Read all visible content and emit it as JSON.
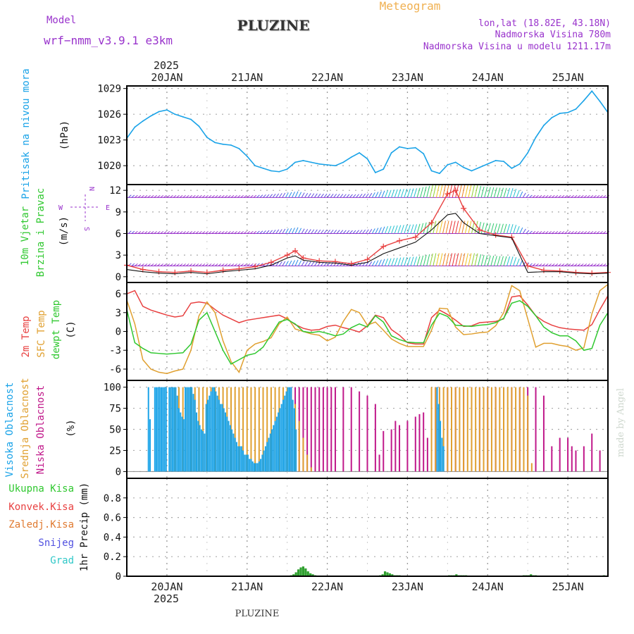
{
  "header": {
    "model_label": "Model",
    "model_name": "wrf−nmm_v3.9.1  e3km",
    "station": "PLUZINE",
    "product": "Meteogram",
    "lonlat": "lon,lat (18.82E, 43.18N)",
    "altitude": "Nadmorska Visina 780m",
    "model_altitude": "Nadmorska Visina u modelu 1211.17m",
    "footer_station": "PLUZINE",
    "watermark": "made by Angel"
  },
  "colors": {
    "pressure": "#1aa3e8",
    "temp2m": "#e84040",
    "sfc_temp": "#e0a030",
    "dewpt": "#30c830",
    "high_cloud": "#1aa3e8",
    "mid_cloud": "#e0a030",
    "low_cloud": "#c0188a",
    "precip_total": "#30a030",
    "purple": "#9933cc"
  },
  "chart_data": [
    {
      "id": "pressure",
      "type": "line",
      "title": "Pritisak na nivou mora",
      "ylabel": "(hPa)",
      "x_days": [
        "20JAN",
        "21JAN",
        "22JAN",
        "23JAN",
        "24JAN",
        "25JAN"
      ],
      "year": "2025",
      "xlim": [
        -0.5,
        5.5
      ],
      "ylim": [
        1017.8,
        1029.3
      ],
      "yticks": [
        "1029",
        "1026",
        "1023",
        "1020"
      ],
      "ytick_values": [
        1029,
        1026,
        1023,
        1020
      ],
      "x": [
        -0.5,
        -0.4,
        -0.3,
        -0.2,
        -0.1,
        0.0,
        0.1,
        0.2,
        0.3,
        0.4,
        0.5,
        0.6,
        0.7,
        0.8,
        0.9,
        1.0,
        1.1,
        1.2,
        1.3,
        1.4,
        1.5,
        1.6,
        1.7,
        1.8,
        1.9,
        2.0,
        2.1,
        2.2,
        2.3,
        2.4,
        2.5,
        2.6,
        2.7,
        2.8,
        2.9,
        3.0,
        3.1,
        3.2,
        3.3,
        3.4,
        3.5,
        3.6,
        3.7,
        3.8,
        3.9,
        4.0,
        4.1,
        4.2,
        4.3,
        4.4,
        4.5,
        4.6,
        4.7,
        4.8,
        4.9,
        5.0,
        5.1,
        5.2,
        5.3,
        5.4,
        5.5
      ],
      "y": [
        1023.2,
        1024.5,
        1025.2,
        1025.8,
        1026.3,
        1026.5,
        1026.0,
        1025.7,
        1025.4,
        1024.6,
        1023.3,
        1022.7,
        1022.5,
        1022.4,
        1022.0,
        1021.1,
        1020.0,
        1019.7,
        1019.4,
        1019.3,
        1019.6,
        1020.4,
        1020.6,
        1020.4,
        1020.2,
        1020.1,
        1020.0,
        1020.4,
        1021.0,
        1021.5,
        1020.8,
        1019.2,
        1019.6,
        1021.5,
        1022.2,
        1022.0,
        1022.1,
        1021.4,
        1019.4,
        1019.1,
        1020.1,
        1020.4,
        1019.8,
        1019.4,
        1019.8,
        1020.2,
        1020.6,
        1020.5,
        1019.7,
        1020.2,
        1021.5,
        1023.3,
        1024.7,
        1025.6,
        1026.1,
        1026.2,
        1026.6,
        1027.6,
        1028.7,
        1027.5,
        1026.2
      ]
    },
    {
      "id": "wind",
      "type": "line",
      "title": "10m Vjetar",
      "title2": "Brzina i Pravac",
      "ylabel": "(m/s)",
      "compass": {
        "n": "N",
        "s": "S",
        "e": "E",
        "w": "W"
      },
      "ylim": [
        -0.8,
        12.8
      ],
      "yticks": [
        "12",
        "9",
        "6",
        "3",
        "0"
      ],
      "ytick_values": [
        12,
        9,
        6,
        3,
        0
      ],
      "reference_levels": [
        11,
        6,
        1.5
      ],
      "x": [
        -0.5,
        -0.3,
        -0.1,
        0.1,
        0.3,
        0.5,
        0.7,
        0.9,
        1.1,
        1.3,
        1.5,
        1.6,
        1.7,
        1.9,
        2.1,
        2.3,
        2.5,
        2.7,
        2.9,
        3.1,
        3.3,
        3.5,
        3.6,
        3.7,
        3.9,
        4.1,
        4.3,
        4.5,
        4.7,
        4.9,
        5.1,
        5.3,
        5.5
      ],
      "speed": [
        1.6,
        1.0,
        0.7,
        0.6,
        0.8,
        0.6,
        0.9,
        1.1,
        1.4,
        2.0,
        3.0,
        3.6,
        2.6,
        2.2,
        2.1,
        1.8,
        2.4,
        4.2,
        5.0,
        5.5,
        7.5,
        11.5,
        12.0,
        9.5,
        6.5,
        5.8,
        5.5,
        1.5,
        0.9,
        0.8,
        0.6,
        0.5,
        0.6
      ],
      "model_speed": [
        1.0,
        0.7,
        0.5,
        0.4,
        0.6,
        0.4,
        0.7,
        0.9,
        1.1,
        1.6,
        2.6,
        2.9,
        2.3,
        2.0,
        1.9,
        1.6,
        2.0,
        3.2,
        4.0,
        4.8,
        6.5,
        8.6,
        8.8,
        7.5,
        6.0,
        5.7,
        5.4,
        0.6,
        0.7,
        0.7,
        0.5,
        0.4,
        0.5
      ]
    },
    {
      "id": "temperature",
      "type": "line",
      "labels": [
        "2m Temp",
        "SFC Temp",
        "dewpt Temp"
      ],
      "ylabel": "(C)",
      "ylim": [
        -7.8,
        7.8
      ],
      "yticks": [
        "6",
        "3",
        "0",
        "-3",
        "-6"
      ],
      "ytick_values": [
        6,
        3,
        0,
        -3,
        -6
      ],
      "x": [
        -0.5,
        -0.4,
        -0.3,
        -0.2,
        -0.1,
        0.0,
        0.1,
        0.2,
        0.3,
        0.4,
        0.5,
        0.6,
        0.7,
        0.8,
        0.9,
        1.0,
        1.1,
        1.2,
        1.3,
        1.4,
        1.5,
        1.6,
        1.7,
        1.8,
        1.9,
        2.0,
        2.1,
        2.2,
        2.3,
        2.4,
        2.5,
        2.6,
        2.7,
        2.8,
        2.9,
        3.0,
        3.1,
        3.2,
        3.3,
        3.4,
        3.5,
        3.6,
        3.7,
        3.8,
        3.9,
        4.0,
        4.1,
        4.2,
        4.3,
        4.4,
        4.5,
        4.6,
        4.7,
        4.8,
        4.9,
        5.0,
        5.1,
        5.2,
        5.3,
        5.4,
        5.5
      ],
      "temp2m": [
        6.0,
        6.5,
        4.0,
        3.4,
        3.0,
        2.6,
        2.3,
        2.5,
        4.5,
        4.7,
        4.5,
        3.5,
        2.6,
        2.0,
        1.4,
        1.8,
        2.0,
        2.2,
        2.4,
        2.6,
        2.0,
        1.1,
        0.5,
        0.2,
        0.3,
        0.8,
        1.0,
        0.6,
        0.3,
        -0.1,
        0.9,
        2.6,
        2.2,
        0.3,
        -0.6,
        -1.8,
        -2.0,
        -2.0,
        2.2,
        3.4,
        2.7,
        1.8,
        0.8,
        0.9,
        1.4,
        1.5,
        1.6,
        2.0,
        5.5,
        5.7,
        4.2,
        2.5,
        1.6,
        1.0,
        0.6,
        0.4,
        0.3,
        0.2,
        1.1,
        3.5,
        5.7
      ],
      "sfc_temp": [
        5.0,
        1.2,
        -4.5,
        -6.0,
        -6.5,
        -6.7,
        -6.3,
        -6.0,
        -3.0,
        2.5,
        4.7,
        3.0,
        -1.5,
        -4.8,
        -6.5,
        -3.0,
        -2.0,
        -1.6,
        -1.0,
        1.2,
        2.3,
        0.4,
        0.0,
        -0.4,
        -0.6,
        -1.5,
        -0.9,
        1.6,
        3.5,
        3.0,
        1.0,
        1.5,
        0.2,
        -1.2,
        -1.9,
        -2.4,
        -2.4,
        -2.4,
        0.2,
        3.7,
        3.6,
        0.7,
        -0.5,
        -0.4,
        -0.2,
        -0.1,
        0.9,
        3.0,
        7.3,
        6.5,
        2.0,
        -2.5,
        -1.9,
        -1.9,
        -2.2,
        -2.4,
        -3.0,
        -2.6,
        2.8,
        6.5,
        7.5
      ],
      "dewpt": [
        3.5,
        -1.8,
        -2.7,
        -3.4,
        -3.5,
        -3.6,
        -3.5,
        -3.4,
        -2.0,
        1.8,
        3.0,
        0.0,
        -3.0,
        -5.2,
        -4.5,
        -3.8,
        -3.5,
        -2.5,
        -0.5,
        1.5,
        1.9,
        1.2,
        0.0,
        -0.2,
        0.0,
        -0.3,
        -0.7,
        -0.4,
        0.6,
        1.2,
        0.7,
        2.5,
        1.5,
        -0.7,
        -1.3,
        -1.7,
        -1.8,
        -1.8,
        1.0,
        2.9,
        2.4,
        1.0,
        0.9,
        0.8,
        1.0,
        1.1,
        1.4,
        2.1,
        4.5,
        4.9,
        4.0,
        2.5,
        0.7,
        -0.2,
        -0.7,
        -0.7,
        -1.5,
        -3.0,
        -2.7,
        1.0,
        3.0
      ]
    },
    {
      "id": "clouds",
      "type": "bar",
      "labels": [
        "Visoka Oblacnost",
        "Srednja Oblacnost",
        "Niska Oblacnost"
      ],
      "ylabel": "(%)",
      "ylim": [
        -8,
        108
      ],
      "yticks": [
        "100",
        "75",
        "50",
        "25",
        "0"
      ],
      "ytick_values": [
        100,
        75,
        50,
        25,
        0
      ],
      "high_x": [
        -0.23,
        -0.21,
        -0.15,
        -0.13,
        -0.11,
        -0.09,
        -0.07,
        -0.05,
        -0.03,
        -0.01,
        0.03,
        0.05,
        0.07,
        0.09,
        0.11,
        0.13,
        0.15,
        0.17,
        0.19,
        0.21,
        0.23,
        0.25,
        0.27,
        0.29,
        0.31,
        0.33,
        0.35,
        0.37,
        0.39,
        0.41,
        0.43,
        0.45,
        0.47,
        0.49,
        0.51,
        0.53,
        0.55,
        0.57,
        0.59,
        0.61,
        0.63,
        0.65,
        0.67,
        0.69,
        0.71,
        0.73,
        0.75,
        0.77,
        0.79,
        0.81,
        0.83,
        0.85,
        0.87,
        0.89,
        0.91,
        0.93,
        0.95,
        0.97,
        0.99,
        1.01,
        1.03,
        1.05,
        1.07,
        1.09,
        1.11,
        1.13,
        1.15,
        1.17,
        1.19,
        1.21,
        1.23,
        1.25,
        1.27,
        1.29,
        1.31,
        1.33,
        1.35,
        1.37,
        1.39,
        1.41,
        1.43,
        1.45,
        1.47,
        1.49,
        1.51,
        1.53,
        1.55,
        1.57,
        1.59,
        1.61,
        3.37,
        3.39,
        3.41,
        3.43,
        3.45
      ],
      "high": [
        100,
        62,
        100,
        100,
        100,
        100,
        100,
        100,
        100,
        100,
        100,
        100,
        100,
        100,
        100,
        90,
        75,
        70,
        65,
        62,
        100,
        100,
        100,
        100,
        100,
        92,
        85,
        70,
        60,
        55,
        50,
        48,
        45,
        80,
        85,
        90,
        95,
        100,
        100,
        95,
        90,
        85,
        80,
        80,
        75,
        70,
        65,
        60,
        55,
        50,
        45,
        40,
        35,
        30,
        30,
        30,
        25,
        20,
        20,
        20,
        15,
        15,
        12,
        10,
        10,
        10,
        12,
        15,
        20,
        25,
        30,
        35,
        40,
        45,
        50,
        55,
        60,
        65,
        70,
        75,
        80,
        85,
        90,
        95,
        100,
        100,
        100,
        85,
        75,
        50,
        100,
        80,
        60,
        40,
        30
      ],
      "mid_x": [
        0.05,
        0.1,
        0.15,
        0.2,
        0.25,
        0.3,
        0.35,
        0.4,
        0.45,
        0.5,
        0.55,
        0.6,
        0.65,
        0.7,
        0.75,
        0.8,
        0.85,
        0.9,
        0.95,
        1.0,
        1.05,
        1.1,
        1.15,
        1.2,
        1.25,
        1.3,
        1.35,
        1.4,
        1.45,
        1.5,
        1.55,
        1.6,
        1.65,
        1.7,
        1.75,
        1.8,
        3.3,
        3.35,
        3.4,
        3.45,
        3.5,
        3.55,
        3.6,
        3.65,
        3.7,
        3.75,
        3.8,
        3.85,
        3.9,
        3.95,
        4.0,
        4.05,
        4.1,
        4.15,
        4.2,
        4.25,
        4.3,
        4.35,
        4.4,
        4.45,
        4.5,
        4.55
      ],
      "mid": [
        100,
        100,
        100,
        100,
        100,
        100,
        100,
        100,
        100,
        100,
        100,
        100,
        100,
        100,
        100,
        100,
        100,
        100,
        100,
        100,
        100,
        100,
        100,
        100,
        100,
        100,
        100,
        100,
        100,
        100,
        95,
        80,
        60,
        40,
        20,
        5,
        100,
        100,
        100,
        100,
        100,
        100,
        100,
        100,
        100,
        100,
        100,
        100,
        100,
        100,
        100,
        100,
        100,
        100,
        100,
        100,
        100,
        100,
        100,
        100,
        90,
        10
      ],
      "low_x": [
        1.55,
        1.6,
        1.65,
        1.7,
        1.75,
        1.8,
        1.85,
        1.9,
        1.95,
        2.0,
        2.05,
        2.1,
        2.2,
        2.3,
        2.4,
        2.5,
        2.6,
        2.65,
        2.7,
        2.8,
        2.85,
        2.9,
        3.0,
        3.1,
        3.15,
        3.2,
        3.25,
        3.35,
        3.4,
        3.5,
        3.6,
        3.7,
        3.8,
        3.9,
        4.0,
        4.1,
        4.2,
        4.3,
        4.4,
        4.5,
        4.6,
        4.7,
        4.8,
        4.9,
        5.0,
        5.05,
        5.1,
        5.2,
        5.3,
        5.4
      ],
      "low": [
        100,
        100,
        100,
        100,
        100,
        100,
        100,
        100,
        100,
        100,
        100,
        100,
        100,
        100,
        95,
        90,
        80,
        20,
        48,
        50,
        60,
        55,
        60,
        65,
        68,
        70,
        40,
        100,
        100,
        100,
        100,
        100,
        100,
        100,
        100,
        100,
        100,
        100,
        100,
        100,
        100,
        90,
        30,
        40,
        40,
        30,
        25,
        30,
        45,
        25
      ]
    },
    {
      "id": "precip",
      "type": "bar",
      "legend": [
        "Ukupna Kisa",
        "Konvek.Kisa",
        "Zaledj.Kisa",
        "Snijeg",
        "Grad"
      ],
      "legend_colors": [
        "#30c830",
        "#e84040",
        "#e07a30",
        "#5050e0",
        "#30c8c8"
      ],
      "ylabel": "1hr Precip (mm)",
      "ylim": [
        0,
        1.0
      ],
      "yticks": [
        "0.8",
        "0.6",
        "0.4",
        "0.2",
        "0"
      ],
      "ytick_values": [
        0.8,
        0.6,
        0.4,
        0.2,
        0
      ],
      "x": [
        1.55,
        1.58,
        1.61,
        1.64,
        1.67,
        1.7,
        1.73,
        1.76,
        1.79,
        1.82,
        1.85,
        2.66,
        2.69,
        2.72,
        2.75,
        2.78,
        2.81,
        2.84,
        2.87,
        2.9,
        3.52,
        3.55,
        3.58,
        3.61,
        3.64,
        3.67,
        3.7,
        3.73,
        4.45,
        4.48,
        4.51,
        4.54,
        4.57,
        4.6,
        5.45
      ],
      "values": [
        0.01,
        0.02,
        0.04,
        0.07,
        0.09,
        0.1,
        0.08,
        0.05,
        0.03,
        0.02,
        0.01,
        0.01,
        0.02,
        0.05,
        0.04,
        0.03,
        0.02,
        0.01,
        0.01,
        0.01,
        0.01,
        0.01,
        0.01,
        0.02,
        0.01,
        0.01,
        0.01,
        0.01,
        0.01,
        0.01,
        0.01,
        0.02,
        0.01,
        0.01,
        0.01
      ]
    }
  ]
}
